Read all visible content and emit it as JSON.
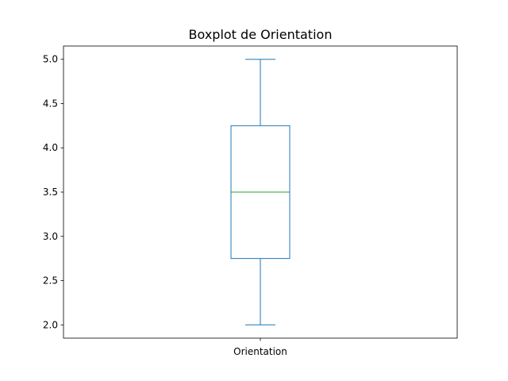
{
  "chart_data": {
    "type": "boxplot",
    "title": "Boxplot de Orientation",
    "xlabel": "",
    "ylabel": "",
    "categories": [
      "Orientation"
    ],
    "boxes": [
      {
        "category": "Orientation",
        "whisker_low": 2.0,
        "q1": 2.75,
        "median": 3.5,
        "q3": 4.25,
        "whisker_high": 5.0
      }
    ],
    "ylim": [
      1.85,
      5.15
    ],
    "yticks": [
      2.0,
      2.5,
      3.0,
      3.5,
      4.0,
      4.5,
      5.0
    ],
    "ytick_labels": [
      "2.0",
      "2.5",
      "3.0",
      "3.5",
      "4.0",
      "4.5",
      "5.0"
    ],
    "grid": false,
    "colors": {
      "box": "#1f77b4",
      "median": "#2ca02c",
      "axes": "#000000"
    }
  }
}
